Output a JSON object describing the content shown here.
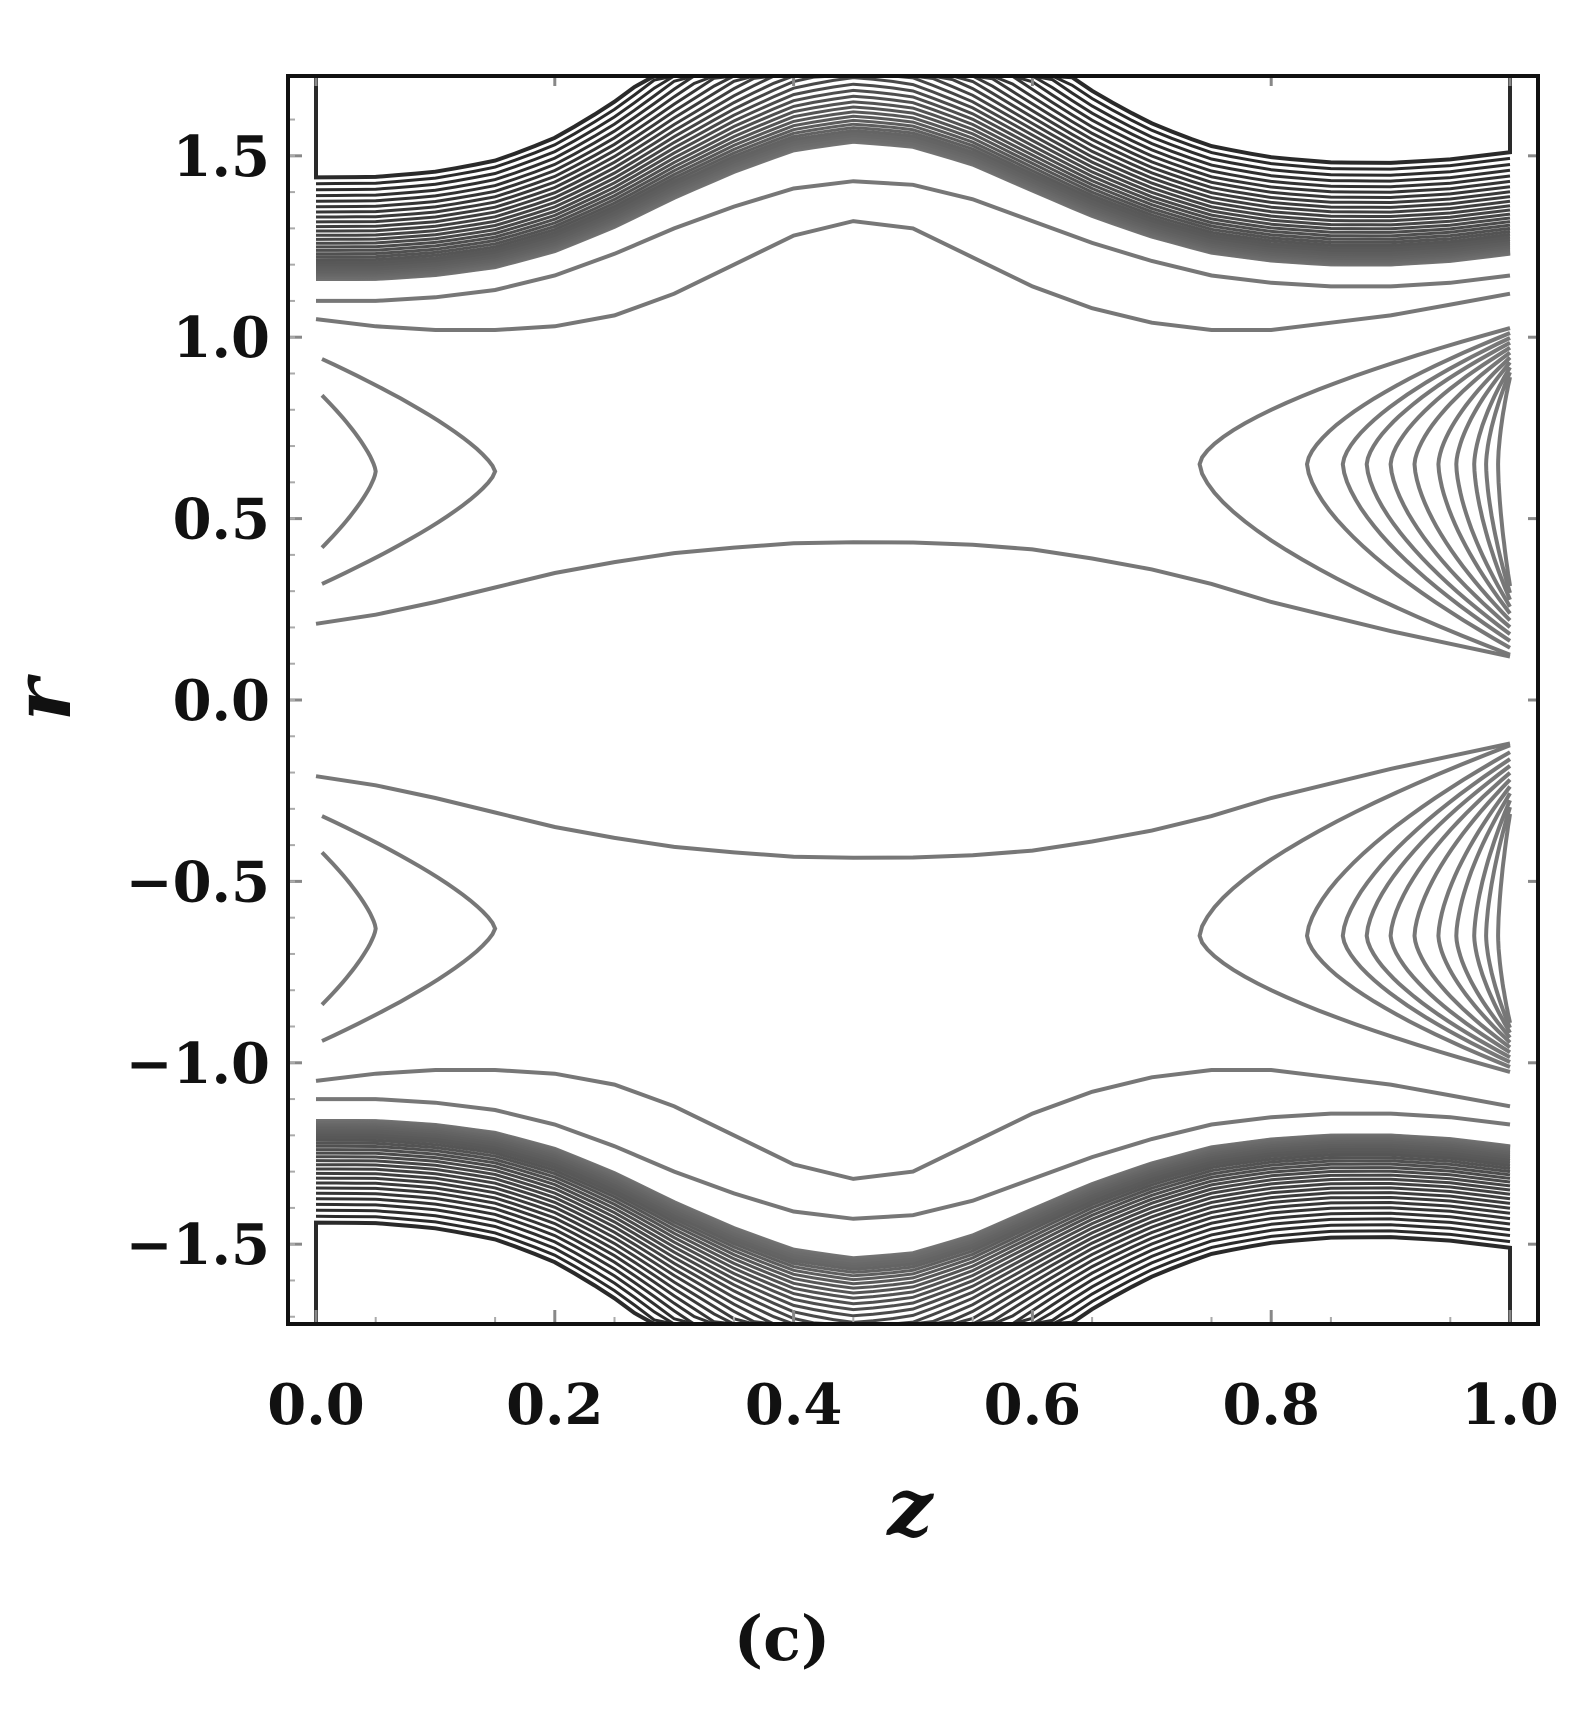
{
  "figure": {
    "panel_label": "(c)"
  },
  "chart_data": {
    "type": "contour",
    "title": "",
    "xlabel": "z",
    "ylabel": "r",
    "xlim": [
      0.0,
      1.0
    ],
    "ylim": [
      -1.72,
      1.72
    ],
    "xticks": [
      0.0,
      0.2,
      0.4,
      0.6,
      0.8,
      1.0
    ],
    "xtick_labels": [
      "0.0",
      "0.2",
      "0.4",
      "0.6",
      "0.8",
      "1.0"
    ],
    "yticks": [
      -1.5,
      -1.0,
      -0.5,
      0.0,
      0.5,
      1.0,
      1.5
    ],
    "ytick_labels": [
      "−1.5",
      "−1.0",
      "−0.5",
      "0.0",
      "0.5",
      "1.0",
      "1.5"
    ],
    "grid": false,
    "legend": "none",
    "symmetric_about_r0": true,
    "line_color": "#777777",
    "dense_color": "#2a2a2a",
    "contours": {
      "center_band": [
        {
          "z": [
            0.0,
            0.05,
            0.1,
            0.15,
            0.2,
            0.25,
            0.3,
            0.35,
            0.4,
            0.45,
            0.5,
            0.55,
            0.6,
            0.65,
            0.7,
            0.75,
            0.8,
            0.85,
            0.9,
            0.95,
            1.0
          ],
          "r": [
            0.21,
            0.235,
            0.27,
            0.31,
            0.35,
            0.38,
            0.405,
            0.42,
            0.432,
            0.435,
            0.434,
            0.428,
            0.415,
            0.39,
            0.36,
            0.32,
            0.27,
            0.23,
            0.19,
            0.155,
            0.12
          ]
        }
      ],
      "left_vortex_tips": [
        0.05,
        0.15
      ],
      "left_vortex_center_r": 0.63,
      "right_vortex_tips": [
        0.74,
        0.83,
        0.86,
        0.88,
        0.9,
        0.92,
        0.94,
        0.955,
        0.97,
        0.98,
        0.99
      ],
      "right_vortex_center_r": 0.65,
      "outer_lines": [
        {
          "z": [
            0.0,
            0.05,
            0.1,
            0.15,
            0.2,
            0.25,
            0.3,
            0.35,
            0.4,
            0.45,
            0.5,
            0.55,
            0.6,
            0.65,
            0.7,
            0.75,
            0.8,
            0.85,
            0.9,
            0.95,
            1.0
          ],
          "r": [
            1.05,
            1.03,
            1.02,
            1.02,
            1.03,
            1.06,
            1.12,
            1.2,
            1.28,
            1.32,
            1.3,
            1.22,
            1.14,
            1.08,
            1.04,
            1.02,
            1.02,
            1.04,
            1.06,
            1.09,
            1.12
          ]
        },
        {
          "z": [
            0.0,
            0.05,
            0.1,
            0.15,
            0.2,
            0.25,
            0.3,
            0.35,
            0.4,
            0.45,
            0.5,
            0.55,
            0.6,
            0.65,
            0.7,
            0.75,
            0.8,
            0.85,
            0.9,
            0.95,
            1.0
          ],
          "r": [
            1.1,
            1.1,
            1.11,
            1.13,
            1.17,
            1.23,
            1.3,
            1.36,
            1.41,
            1.43,
            1.42,
            1.38,
            1.32,
            1.26,
            1.21,
            1.17,
            1.15,
            1.14,
            1.14,
            1.15,
            1.17
          ]
        }
      ],
      "dense_region": "outer bands |r| > 1.1 with many closely spaced contours"
    }
  }
}
